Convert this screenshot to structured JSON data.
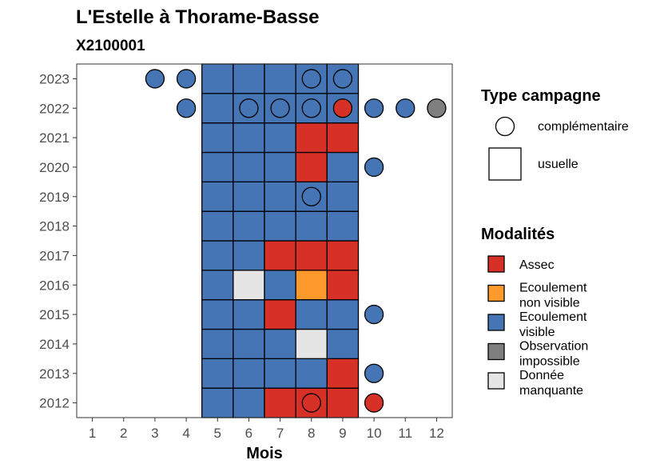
{
  "chart_data": {
    "type": "heatmap",
    "title": "L'Estelle à Thorame-Basse",
    "subtitle": "X2100001",
    "xlabel": "Mois",
    "ylabel": "",
    "x_categories": [
      "1",
      "2",
      "3",
      "4",
      "5",
      "6",
      "7",
      "8",
      "9",
      "10",
      "11",
      "12"
    ],
    "y_categories": [
      "2012",
      "2013",
      "2014",
      "2015",
      "2016",
      "2017",
      "2018",
      "2019",
      "2020",
      "2021",
      "2022",
      "2023"
    ],
    "grid": false,
    "legend_placement": "right",
    "colors": {
      "Assec": "#d73027",
      "Ecoulement non visible": "#fd9a2b",
      "Ecoulement visible": "#4575b4",
      "Observation impossible": "#7f7f7f",
      "Donnée manquante": "#e5e5e5"
    },
    "modalites": [
      {
        "key": "Assec",
        "label": "Assec"
      },
      {
        "key": "Ecoulement non visible",
        "label": "Ecoulement\nnon visible"
      },
      {
        "key": "Ecoulement visible",
        "label": "Ecoulement\nvisible"
      },
      {
        "key": "Observation impossible",
        "label": "Observation\nimpossible"
      },
      {
        "key": "Donnée manquante",
        "label": "Donnée\nmanquante"
      }
    ],
    "type_campagne_title": "Type campagne",
    "type_campagne": [
      {
        "key": "complementaire",
        "label": "complémentaire",
        "shape": "circle"
      },
      {
        "key": "usuelle",
        "label": "usuelle",
        "shape": "square"
      }
    ],
    "usuelle": [
      {
        "year": "2012",
        "month": "5",
        "value": "Ecoulement visible"
      },
      {
        "year": "2012",
        "month": "6",
        "value": "Ecoulement visible"
      },
      {
        "year": "2012",
        "month": "7",
        "value": "Assec"
      },
      {
        "year": "2012",
        "month": "8",
        "value": "Assec"
      },
      {
        "year": "2012",
        "month": "9",
        "value": "Assec"
      },
      {
        "year": "2013",
        "month": "5",
        "value": "Ecoulement visible"
      },
      {
        "year": "2013",
        "month": "6",
        "value": "Ecoulement visible"
      },
      {
        "year": "2013",
        "month": "7",
        "value": "Ecoulement visible"
      },
      {
        "year": "2013",
        "month": "8",
        "value": "Ecoulement visible"
      },
      {
        "year": "2013",
        "month": "9",
        "value": "Assec"
      },
      {
        "year": "2014",
        "month": "5",
        "value": "Ecoulement visible"
      },
      {
        "year": "2014",
        "month": "6",
        "value": "Ecoulement visible"
      },
      {
        "year": "2014",
        "month": "7",
        "value": "Ecoulement visible"
      },
      {
        "year": "2014",
        "month": "8",
        "value": "Donnée manquante"
      },
      {
        "year": "2014",
        "month": "9",
        "value": "Ecoulement visible"
      },
      {
        "year": "2015",
        "month": "5",
        "value": "Ecoulement visible"
      },
      {
        "year": "2015",
        "month": "6",
        "value": "Ecoulement visible"
      },
      {
        "year": "2015",
        "month": "7",
        "value": "Assec"
      },
      {
        "year": "2015",
        "month": "8",
        "value": "Ecoulement visible"
      },
      {
        "year": "2015",
        "month": "9",
        "value": "Ecoulement visible"
      },
      {
        "year": "2016",
        "month": "5",
        "value": "Ecoulement visible"
      },
      {
        "year": "2016",
        "month": "6",
        "value": "Donnée manquante"
      },
      {
        "year": "2016",
        "month": "7",
        "value": "Ecoulement visible"
      },
      {
        "year": "2016",
        "month": "8",
        "value": "Ecoulement non visible"
      },
      {
        "year": "2016",
        "month": "9",
        "value": "Assec"
      },
      {
        "year": "2017",
        "month": "5",
        "value": "Ecoulement visible"
      },
      {
        "year": "2017",
        "month": "6",
        "value": "Ecoulement visible"
      },
      {
        "year": "2017",
        "month": "7",
        "value": "Assec"
      },
      {
        "year": "2017",
        "month": "8",
        "value": "Assec"
      },
      {
        "year": "2017",
        "month": "9",
        "value": "Assec"
      },
      {
        "year": "2018",
        "month": "5",
        "value": "Ecoulement visible"
      },
      {
        "year": "2018",
        "month": "6",
        "value": "Ecoulement visible"
      },
      {
        "year": "2018",
        "month": "7",
        "value": "Ecoulement visible"
      },
      {
        "year": "2018",
        "month": "8",
        "value": "Ecoulement visible"
      },
      {
        "year": "2018",
        "month": "9",
        "value": "Ecoulement visible"
      },
      {
        "year": "2019",
        "month": "5",
        "value": "Ecoulement visible"
      },
      {
        "year": "2019",
        "month": "6",
        "value": "Ecoulement visible"
      },
      {
        "year": "2019",
        "month": "7",
        "value": "Ecoulement visible"
      },
      {
        "year": "2019",
        "month": "8",
        "value": "Ecoulement visible"
      },
      {
        "year": "2019",
        "month": "9",
        "value": "Ecoulement visible"
      },
      {
        "year": "2020",
        "month": "5",
        "value": "Ecoulement visible"
      },
      {
        "year": "2020",
        "month": "6",
        "value": "Ecoulement visible"
      },
      {
        "year": "2020",
        "month": "7",
        "value": "Ecoulement visible"
      },
      {
        "year": "2020",
        "month": "8",
        "value": "Assec"
      },
      {
        "year": "2020",
        "month": "9",
        "value": "Ecoulement visible"
      },
      {
        "year": "2021",
        "month": "5",
        "value": "Ecoulement visible"
      },
      {
        "year": "2021",
        "month": "6",
        "value": "Ecoulement visible"
      },
      {
        "year": "2021",
        "month": "7",
        "value": "Ecoulement visible"
      },
      {
        "year": "2021",
        "month": "8",
        "value": "Assec"
      },
      {
        "year": "2021",
        "month": "9",
        "value": "Assec"
      },
      {
        "year": "2022",
        "month": "5",
        "value": "Ecoulement visible"
      },
      {
        "year": "2022",
        "month": "6",
        "value": "Ecoulement visible"
      },
      {
        "year": "2022",
        "month": "7",
        "value": "Ecoulement visible"
      },
      {
        "year": "2022",
        "month": "8",
        "value": "Ecoulement visible"
      },
      {
        "year": "2022",
        "month": "9",
        "value": "Ecoulement visible"
      },
      {
        "year": "2023",
        "month": "5",
        "value": "Ecoulement visible"
      },
      {
        "year": "2023",
        "month": "6",
        "value": "Ecoulement visible"
      },
      {
        "year": "2023",
        "month": "7",
        "value": "Ecoulement visible"
      },
      {
        "year": "2023",
        "month": "8",
        "value": "Ecoulement visible"
      },
      {
        "year": "2023",
        "month": "9",
        "value": "Ecoulement visible"
      }
    ],
    "complementaire": [
      {
        "year": "2012",
        "month": "8",
        "value": "Assec"
      },
      {
        "year": "2012",
        "month": "10",
        "value": "Assec"
      },
      {
        "year": "2013",
        "month": "10",
        "value": "Ecoulement visible"
      },
      {
        "year": "2015",
        "month": "10",
        "value": "Ecoulement visible"
      },
      {
        "year": "2019",
        "month": "8",
        "value": "Ecoulement visible"
      },
      {
        "year": "2020",
        "month": "10",
        "value": "Ecoulement visible"
      },
      {
        "year": "2022",
        "month": "4",
        "value": "Ecoulement visible"
      },
      {
        "year": "2022",
        "month": "6",
        "value": "Ecoulement visible"
      },
      {
        "year": "2022",
        "month": "7",
        "value": "Ecoulement visible"
      },
      {
        "year": "2022",
        "month": "8",
        "value": "Ecoulement visible"
      },
      {
        "year": "2022",
        "month": "9",
        "value": "Assec"
      },
      {
        "year": "2022",
        "month": "10",
        "value": "Ecoulement visible"
      },
      {
        "year": "2022",
        "month": "11",
        "value": "Ecoulement visible"
      },
      {
        "year": "2022",
        "month": "12",
        "value": "Observation impossible"
      },
      {
        "year": "2023",
        "month": "3",
        "value": "Ecoulement visible"
      },
      {
        "year": "2023",
        "month": "4",
        "value": "Ecoulement visible"
      },
      {
        "year": "2023",
        "month": "8",
        "value": "Ecoulement visible"
      },
      {
        "year": "2023",
        "month": "9",
        "value": "Ecoulement visible"
      }
    ]
  }
}
